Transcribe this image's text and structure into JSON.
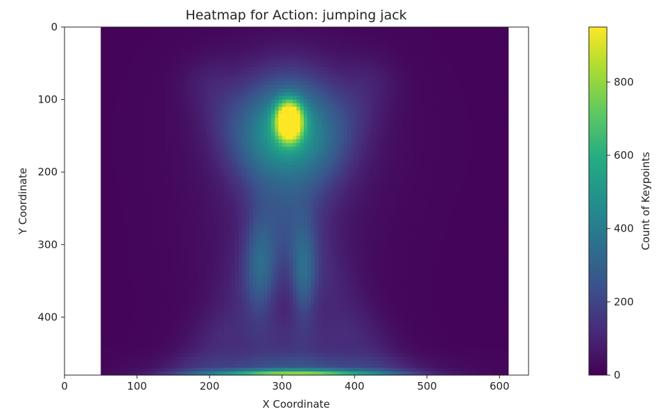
{
  "chart_data": {
    "type": "heatmap",
    "title": "Heatmap for Action: jumping jack",
    "xlabel": "X Coordinate",
    "ylabel": "Y Coordinate",
    "xlim": [
      0,
      640
    ],
    "ylim": [
      480,
      0
    ],
    "data_extent_x": [
      50,
      612
    ],
    "data_extent_y": [
      0,
      480
    ],
    "x_ticks": [
      0,
      100,
      200,
      300,
      400,
      500,
      600
    ],
    "y_ticks": [
      0,
      100,
      200,
      300,
      400
    ],
    "colorbar": {
      "label": "Count of Keypoints",
      "min": 0,
      "max": 950,
      "ticks": [
        0,
        200,
        400,
        600,
        800
      ],
      "colormap": "viridis"
    },
    "hotspots": [
      {
        "x": 310,
        "y": 130,
        "sx": 12,
        "sy": 18,
        "value": 950
      },
      {
        "x": 308,
        "y": 140,
        "sx": 45,
        "sy": 50,
        "value": 420
      },
      {
        "x": 312,
        "y": 150,
        "sx": 80,
        "sy": 70,
        "value": 110
      },
      {
        "x": 270,
        "y": 330,
        "sx": 15,
        "sy": 50,
        "value": 200
      },
      {
        "x": 330,
        "y": 340,
        "sx": 12,
        "sy": 45,
        "value": 220
      },
      {
        "x": 300,
        "y": 310,
        "sx": 70,
        "sy": 70,
        "value": 80
      },
      {
        "x": 310,
        "y": 440,
        "sx": 70,
        "sy": 30,
        "value": 110
      },
      {
        "x": 320,
        "y": 478,
        "sx": 90,
        "sy": 4,
        "value": 620
      },
      {
        "x": 320,
        "y": 468,
        "sx": 110,
        "sy": 12,
        "value": 140
      }
    ],
    "diagonal_bands": [
      {
        "from": [
          170,
          500
        ],
        "to": [
          420,
          80
        ],
        "width": 28,
        "value": 60
      },
      {
        "from": [
          450,
          500
        ],
        "to": [
          200,
          80
        ],
        "width": 28,
        "value": 60
      }
    ],
    "background_value": 12
  }
}
